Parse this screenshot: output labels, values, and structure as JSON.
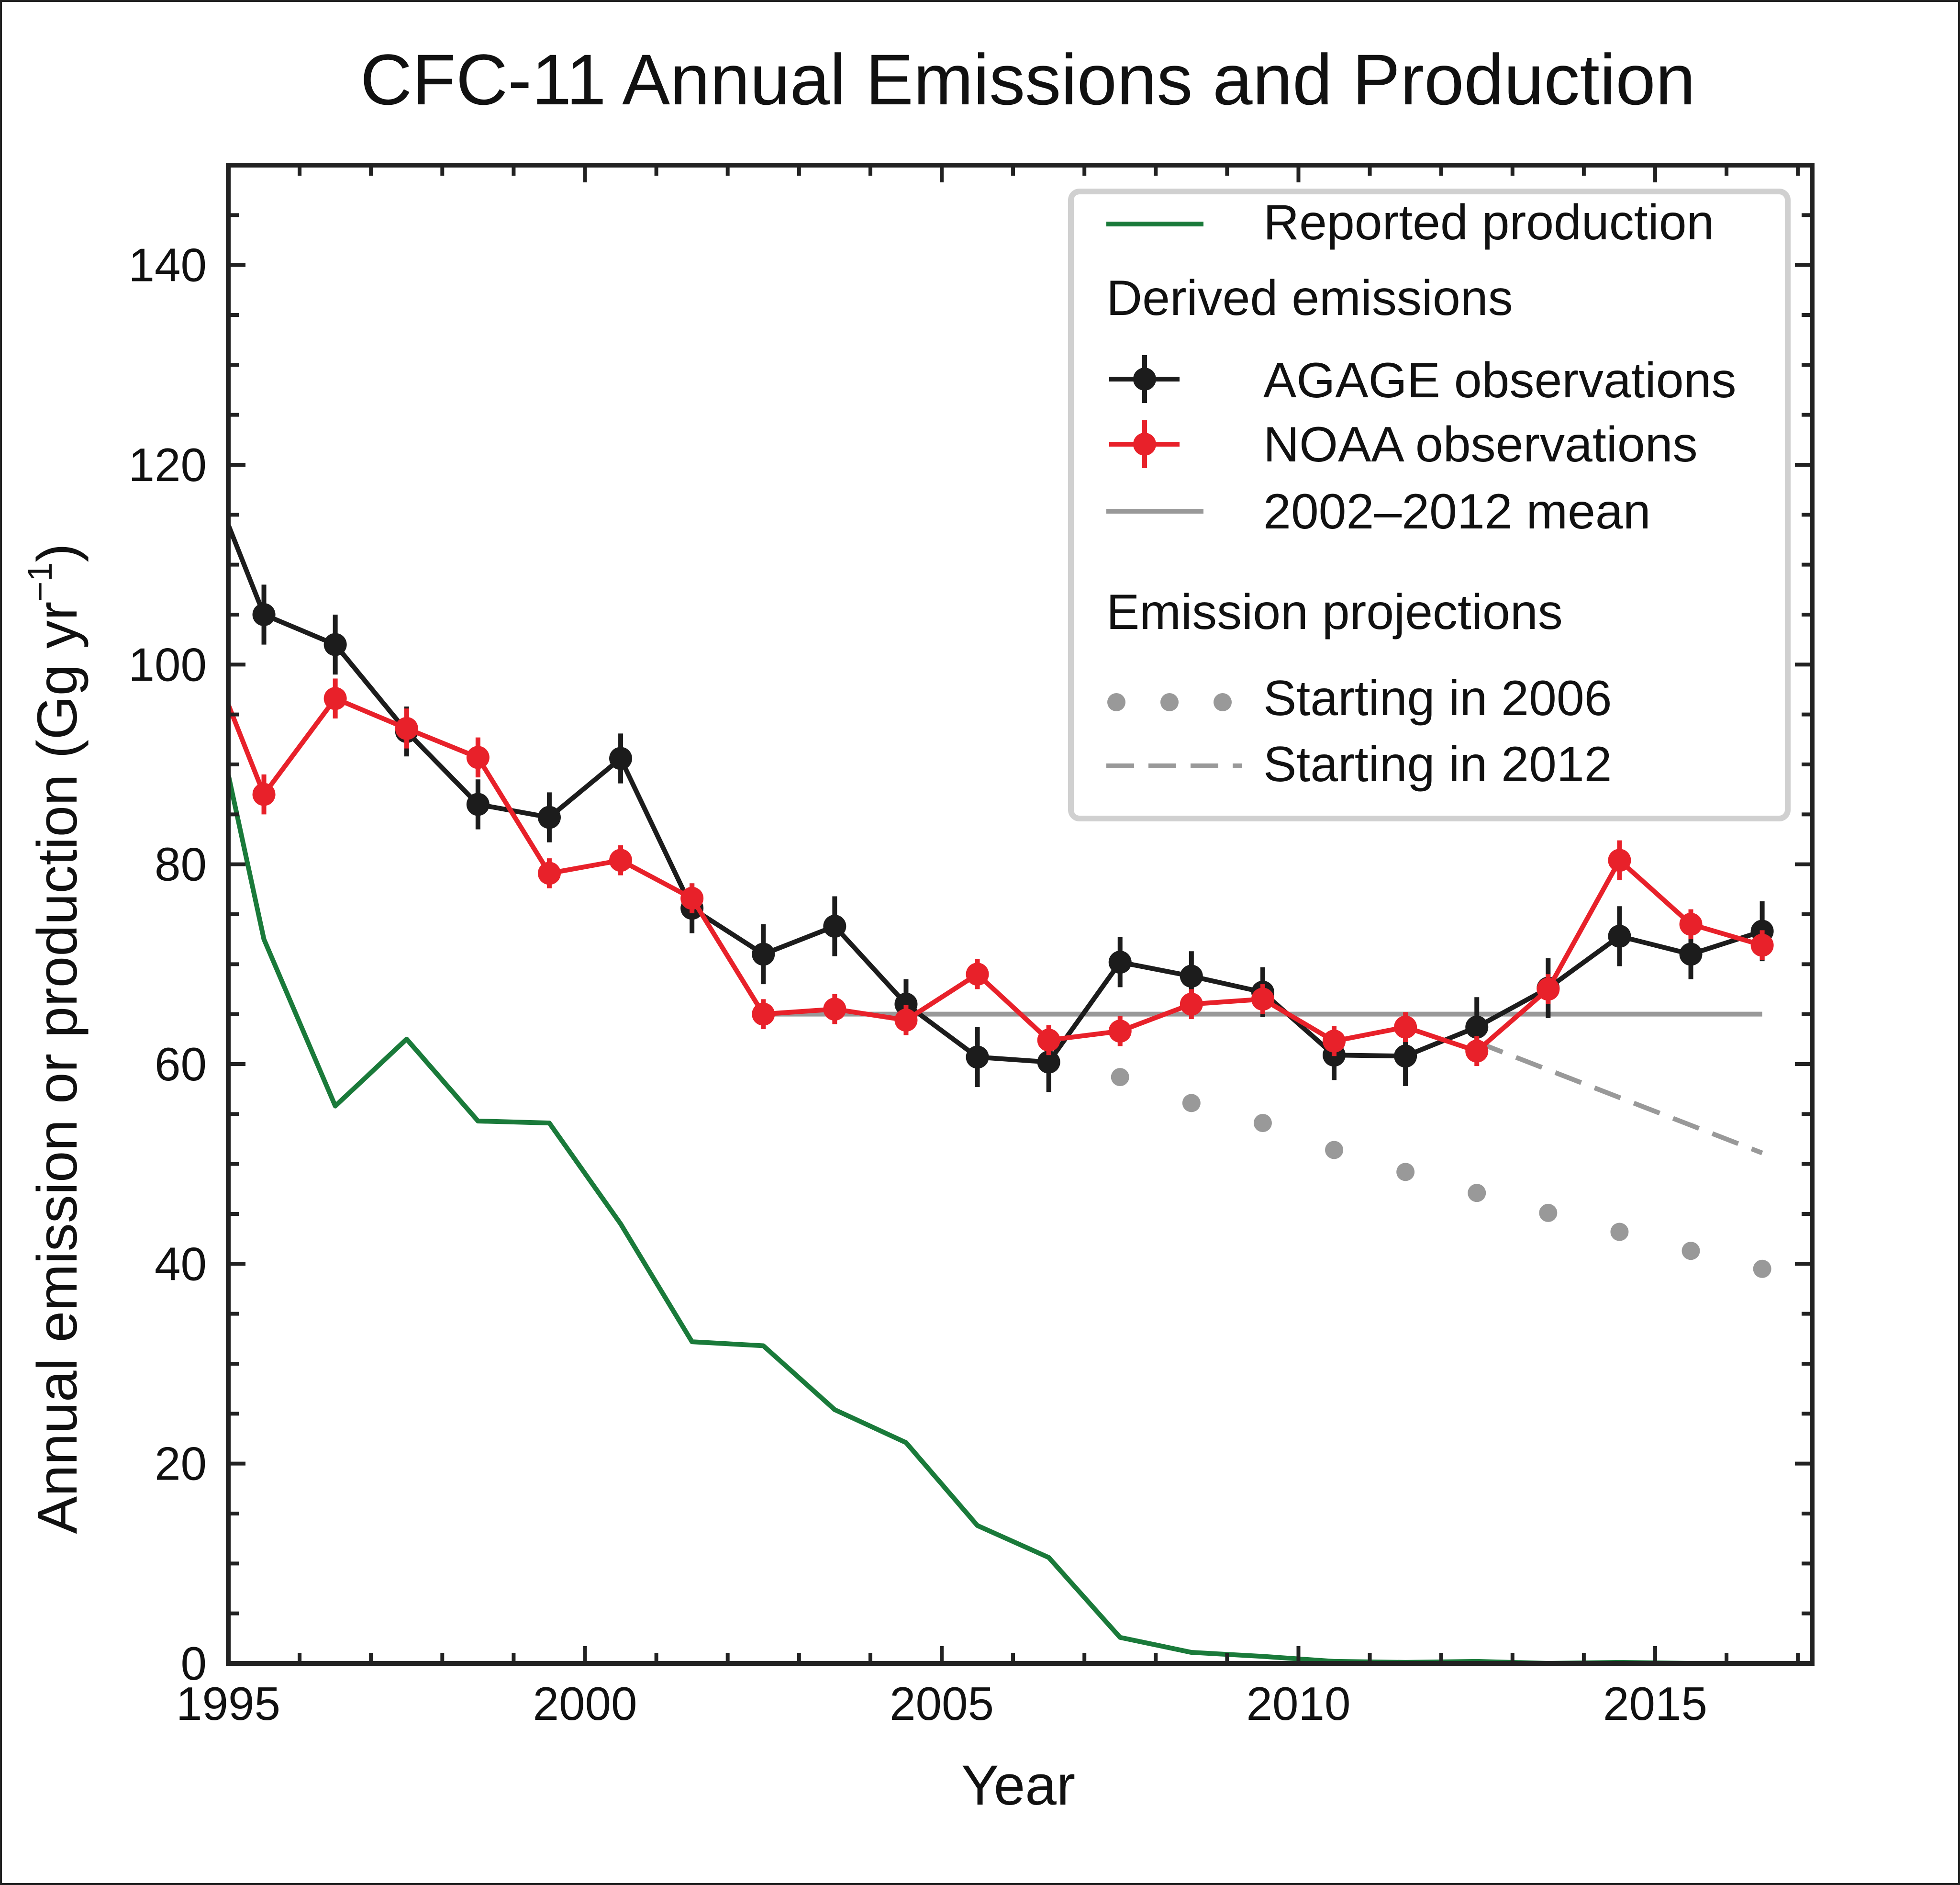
{
  "chart_data": {
    "type": "line",
    "title": "CFC-11 Annual Emissions and Production",
    "xlabel": "Year",
    "ylabel": "Annual emission or production (Gg yr",
    "ylabel_sup": "−1",
    "ylabel_close": ")",
    "xlim": [
      1995,
      2017.2
    ],
    "ylim": [
      0,
      150
    ],
    "x_ticks": [
      1995,
      2000,
      2005,
      2010,
      2015
    ],
    "y_ticks": [
      0,
      20,
      40,
      60,
      80,
      100,
      120,
      140
    ],
    "grid": false,
    "legend_position": "top-right",
    "colors": {
      "production": "#1a7a3a",
      "agage": "#1c1c1c",
      "noaa": "#e8212a",
      "mean": "#999999",
      "projection": "#999999"
    },
    "legend": {
      "production": "Reported production",
      "derived_heading": "Derived emissions",
      "agage": "AGAGE observations",
      "noaa": "NOAA observations",
      "mean": "2002–2012 mean",
      "projections_heading": "Emission projections",
      "proj2006": "Starting in 2006",
      "proj2012": "Starting in 2012"
    },
    "series": [
      {
        "key": "production",
        "name": "Reported production",
        "x": [
          1995,
          1995.5,
          1996.5,
          1997.5,
          1998.5,
          1999.5,
          2000.5,
          2001.5,
          2002.5,
          2003.5,
          2004.5,
          2005.5,
          2006.5,
          2007.5,
          2008.5,
          2009.5,
          2010.5,
          2011.5,
          2012.5,
          2013.5,
          2014.5,
          2015.5
        ],
        "y": [
          89,
          72.5,
          55.8,
          62.5,
          54.3,
          54.1,
          44,
          32.2,
          31.8,
          25.4,
          22.1,
          13.8,
          10.6,
          2.6,
          1.1,
          0.7,
          0.2,
          0.1,
          0.2,
          0.0,
          0.1,
          0.0
        ]
      },
      {
        "key": "agage",
        "name": "AGAGE observations",
        "x": [
          1995,
          1995.5,
          1996.5,
          1997.5,
          1998.5,
          1999.5,
          2000.5,
          2001.5,
          2002.5,
          2003.5,
          2004.5,
          2005.5,
          2006.5,
          2007.5,
          2008.5,
          2009.5,
          2010.5,
          2011.5,
          2012.5,
          2013.5,
          2014.5,
          2015.5,
          2016.5
        ],
        "y": [
          114,
          105,
          102,
          93.3,
          86,
          84.7,
          90.6,
          75.6,
          71.0,
          73.8,
          66,
          60.7,
          60.2,
          70.2,
          68.8,
          67.2,
          60.9,
          60.8,
          63.7,
          67.6,
          72.8,
          71.0,
          73.3
        ],
        "err": [
          0,
          3,
          3,
          2.5,
          2.5,
          2.5,
          2.5,
          2.5,
          3,
          3,
          2.5,
          3,
          3,
          2.5,
          2.5,
          2.5,
          2.5,
          3,
          3,
          3,
          3,
          2.5,
          3
        ]
      },
      {
        "key": "noaa",
        "name": "NOAA observations",
        "x": [
          1995,
          1995.5,
          1996.5,
          1997.5,
          1998.5,
          1999.5,
          2000.5,
          2001.5,
          2002.5,
          2003.5,
          2004.5,
          2005.5,
          2006.5,
          2007.5,
          2008.5,
          2009.5,
          2010.5,
          2011.5,
          2012.5,
          2013.5,
          2014.5,
          2015.5,
          2016.5
        ],
        "y": [
          96,
          87,
          96.6,
          93.6,
          90.7,
          79.1,
          80.4,
          76.6,
          65.0,
          65.5,
          64.4,
          69.0,
          62.4,
          63.3,
          66.0,
          66.5,
          62.3,
          63.7,
          61.3,
          67.5,
          80.4,
          74.0,
          71.9
        ],
        "err": [
          0,
          2,
          2,
          2,
          2,
          1.5,
          1.5,
          1.5,
          1.5,
          1.5,
          1.5,
          1.5,
          1.5,
          1.5,
          1.5,
          1.5,
          1.5,
          1.5,
          1.5,
          1.5,
          2,
          1.5,
          1.5
        ]
      },
      {
        "key": "mean",
        "name": "2002–2012 mean",
        "x": [
          2002.5,
          2016.5
        ],
        "y": [
          65,
          65
        ]
      },
      {
        "key": "proj2006",
        "name": "Starting in 2006",
        "x": [
          2007.5,
          2008.5,
          2009.5,
          2010.5,
          2011.5,
          2012.5,
          2013.5,
          2014.5,
          2015.5,
          2016.5
        ],
        "y": [
          58.7,
          56.1,
          54.1,
          51.4,
          49.2,
          47.1,
          45.1,
          43.2,
          41.3,
          39.5
        ]
      },
      {
        "key": "proj2012",
        "name": "Starting in 2012",
        "x": [
          2012.5,
          2016.5
        ],
        "y": [
          62.2,
          51.1
        ]
      }
    ]
  }
}
